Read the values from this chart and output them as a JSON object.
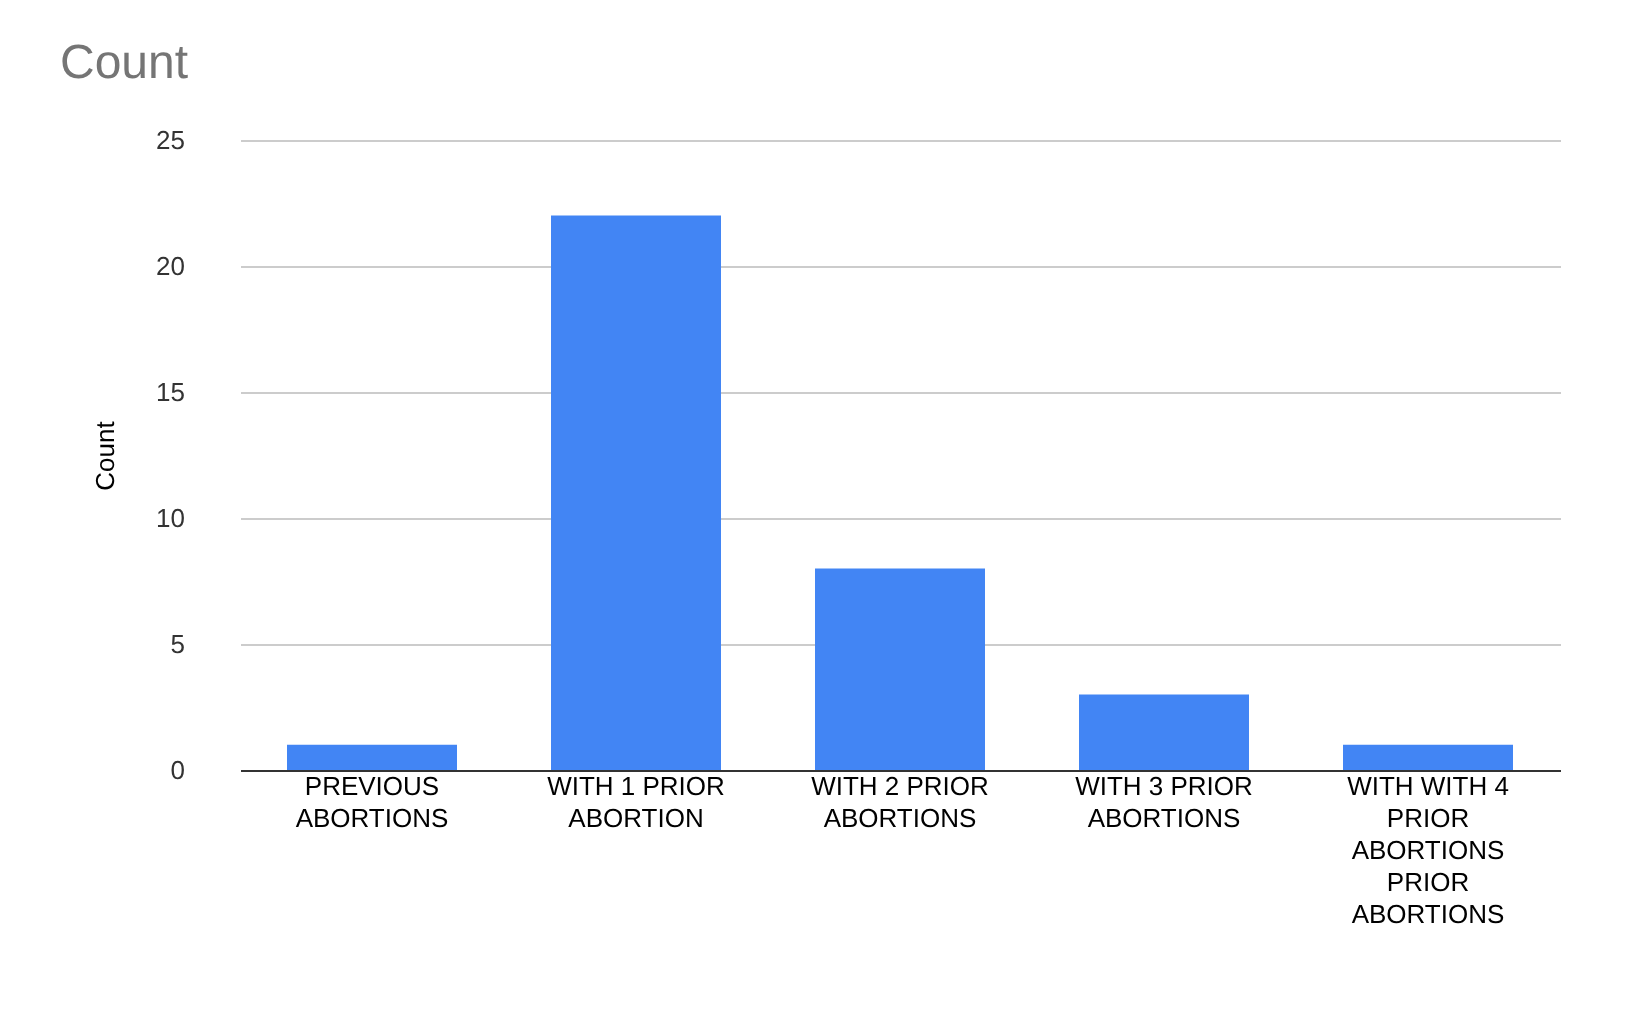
{
  "chart_data": {
    "type": "bar",
    "title": "Count",
    "ylabel": "Count",
    "categories": [
      "PREVIOUS ABORTIONS",
      "WITH 1 PRIOR ABORTION",
      "WITH 2 PRIOR ABORTIONS",
      "WITH 3 PRIOR ABORTIONS",
      "WITH WITH 4 PRIOR ABORTIONS PRIOR ABORTIONS"
    ],
    "values": [
      1,
      22,
      8,
      3,
      1
    ],
    "color": "#4285f4",
    "ylim": [
      0,
      25
    ],
    "yticks": [
      0,
      5,
      10,
      15,
      20,
      25
    ],
    "grid": "y"
  }
}
